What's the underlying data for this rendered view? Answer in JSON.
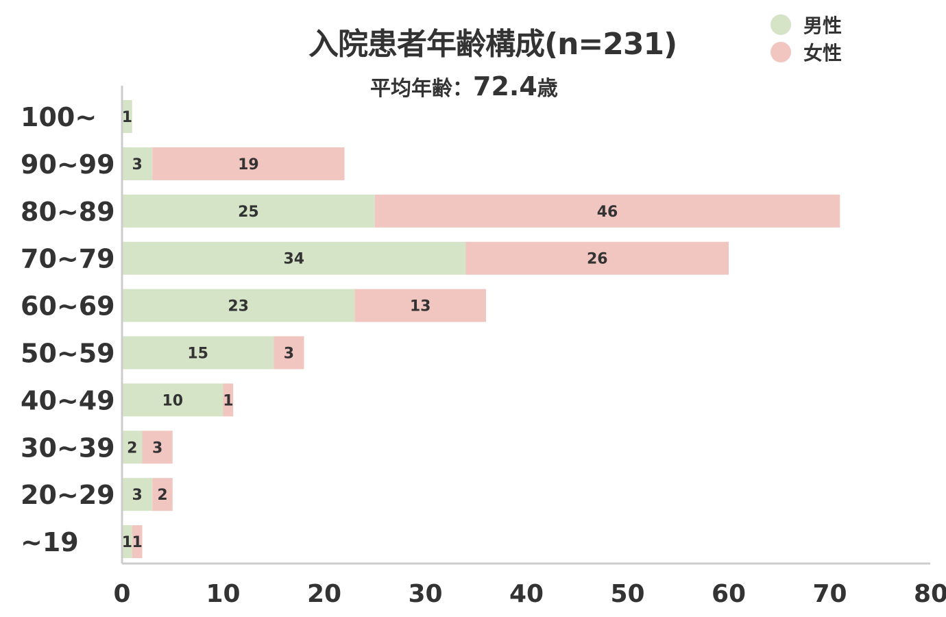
{
  "title": "入院患者年齢構成(n=231)",
  "subtitle_prefix": "平均年齢：",
  "subtitle_value": "72.4",
  "subtitle_suffix": "歳",
  "legend": [
    {
      "label": "男性",
      "color": "#d5e3c7"
    },
    {
      "label": "女性",
      "color": "#f1c5c0"
    }
  ],
  "chart_data": {
    "type": "bar",
    "orientation": "horizontal",
    "stacked": true,
    "categories": [
      "100~",
      "90~99",
      "80~89",
      "70~79",
      "60~69",
      "50~59",
      "40~49",
      "30~39",
      "20~29",
      "~19"
    ],
    "series": [
      {
        "name": "男性",
        "color": "#d5e3c7",
        "values": [
          1,
          3,
          25,
          34,
          23,
          15,
          10,
          2,
          3,
          1
        ]
      },
      {
        "name": "女性",
        "color": "#f1c5c0",
        "values": [
          0,
          19,
          46,
          26,
          13,
          3,
          1,
          3,
          2,
          1
        ]
      }
    ],
    "xlim": [
      0,
      80
    ],
    "xticks": [
      0,
      10,
      20,
      30,
      40,
      50,
      60,
      70,
      80
    ],
    "grid": false,
    "legend_position": "top-right"
  }
}
